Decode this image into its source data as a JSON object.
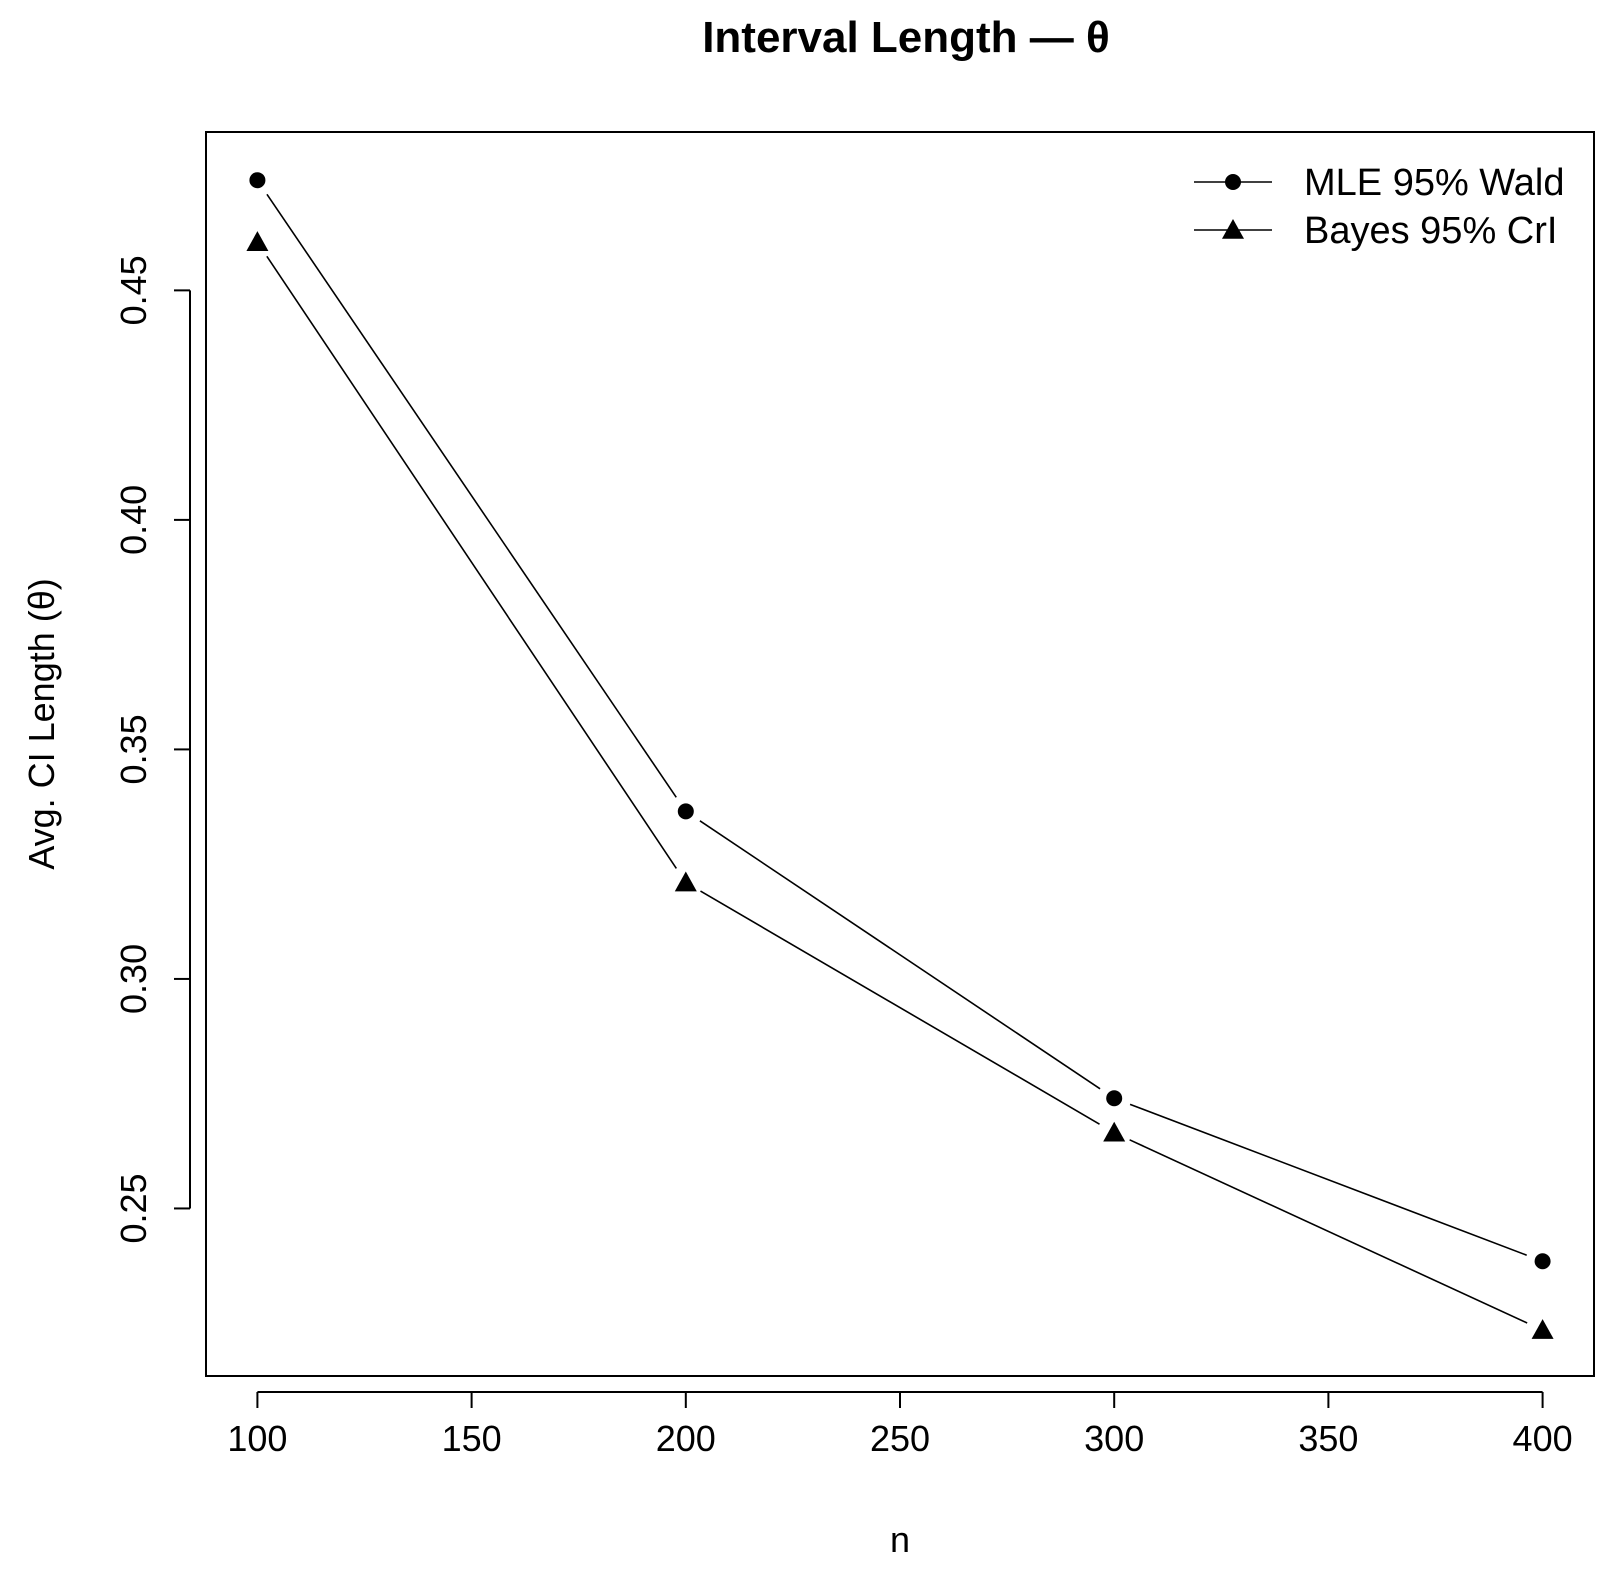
{
  "chart_data": {
    "type": "line",
    "title": "Interval Length — θ",
    "xlabel": "n",
    "ylabel": "Avg. CI Length (θ)",
    "x": [
      100,
      200,
      300,
      400
    ],
    "xlim": [
      88,
      412
    ],
    "ylim": [
      0.2135,
      0.4845
    ],
    "x_ticks": [
      100,
      150,
      200,
      250,
      300,
      350,
      400
    ],
    "y_ticks": [
      0.25,
      0.3,
      0.35,
      0.4,
      0.45
    ],
    "x_tick_labels": [
      "100",
      "150",
      "200",
      "250",
      "300",
      "350",
      "400"
    ],
    "y_tick_labels": [
      "0.25",
      "0.30",
      "0.35",
      "0.40",
      "0.45"
    ],
    "grid": false,
    "legend": {
      "position": "top-right",
      "box": false
    },
    "series": [
      {
        "name": "MLE 95% Wald",
        "marker": "circle",
        "values": [
          0.474,
          0.3365,
          0.274,
          0.2385
        ]
      },
      {
        "name": "Bayes 95% CrI",
        "marker": "triangle",
        "values": [
          0.4605,
          0.321,
          0.2665,
          0.2235
        ]
      }
    ]
  }
}
